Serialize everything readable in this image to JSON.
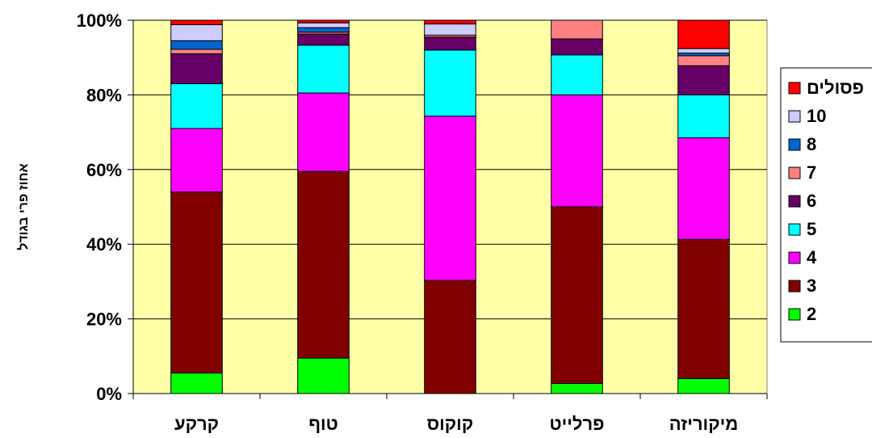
{
  "chart_data": {
    "type": "bar",
    "stacked": "percent",
    "ylabel": "אחוז פרי בגודל",
    "ylim": [
      0,
      100
    ],
    "yticks": [
      "0%",
      "20%",
      "40%",
      "60%",
      "80%",
      "100%"
    ],
    "grid": true,
    "legend_position": "right",
    "categories": [
      "קרקע",
      "טוף",
      "קוקוס",
      "פרלייט",
      "מיקוריזה"
    ],
    "series": [
      {
        "name": "2",
        "color": "#00ff00",
        "values": [
          5.5,
          9.5,
          0,
          2.7,
          4
        ]
      },
      {
        "name": "3",
        "color": "#800000",
        "values": [
          48.5,
          50,
          30.3,
          47.3,
          37.3
        ]
      },
      {
        "name": "4",
        "color": "#ff00ff",
        "values": [
          17,
          21,
          44,
          30,
          27.2
        ]
      },
      {
        "name": "5",
        "color": "#00ffff",
        "values": [
          12,
          12.8,
          17.7,
          10.7,
          11.5
        ]
      },
      {
        "name": "6",
        "color": "#660066",
        "values": [
          8,
          3,
          3.5,
          4.3,
          7.8
        ]
      },
      {
        "name": "7",
        "color": "#ff8080",
        "values": [
          1.2,
          0.5,
          0.5,
          5,
          2.7
        ]
      },
      {
        "name": "8",
        "color": "#0066cc",
        "values": [
          2.3,
          1.2,
          0,
          0,
          0.7
        ]
      },
      {
        "name": "10",
        "color": "#ccccff",
        "values": [
          4.3,
          1.3,
          3,
          0,
          1.2
        ]
      },
      {
        "name": "פסולים",
        "color": "#ff0000",
        "values": [
          1.2,
          0.7,
          1,
          0,
          7.6
        ]
      }
    ]
  }
}
